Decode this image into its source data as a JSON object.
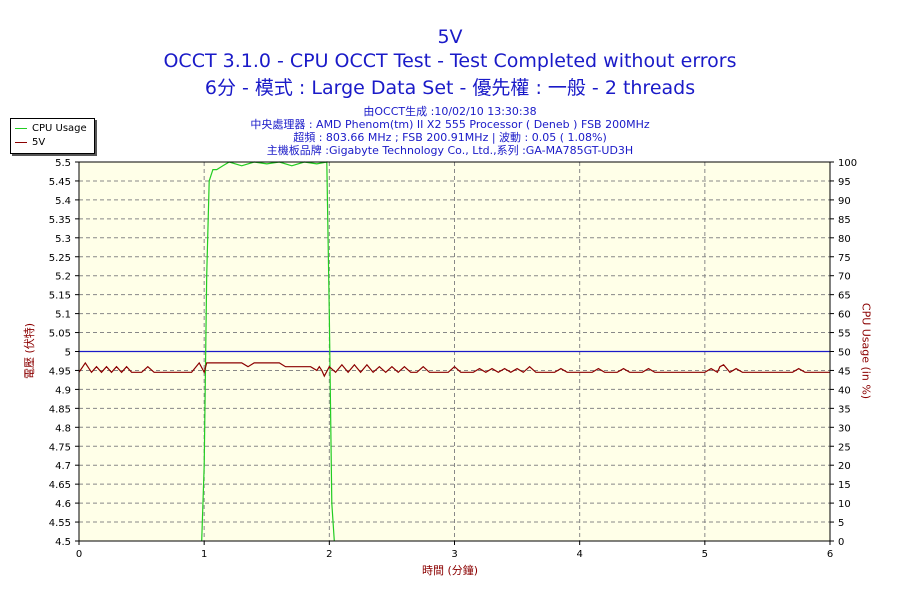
{
  "header": {
    "title": "5V",
    "line2": "OCCT 3.1.0 - CPU OCCT Test - Test Completed without errors",
    "line3": "6分 - 模式 : Large Data Set - 優先權 : 一般 - 2 threads",
    "info": [
      "由OCCT生成 :10/02/10 13:30:38",
      "中央處理器 : AMD Phenom(tm) II X2 555 Processor ( Deneb ) FSB 200MHz",
      "超頻 : 803.66 MHz ; FSB 200.91MHz | 波動 : 0.05 ( 1.08%)",
      "主機板品牌 :Gigabyte Technology Co., Ltd.,系列 :GA-MA785GT-UD3H"
    ]
  },
  "colors": {
    "plot_bg": "#ffffe8",
    "cpu_usage": "#22cc22",
    "voltage": "#8b0000",
    "reference": "#1a1ac8",
    "grid": "#888888",
    "axis_text": "#8b0000"
  },
  "chart_data": {
    "type": "line",
    "title": "5V",
    "xlabel": "時間 (分鐘)",
    "ylabel_left": "電壓 (伏特)",
    "ylabel_right": "CPU Usage (in %)",
    "xlim": [
      0,
      6
    ],
    "ylim_left": [
      4.5,
      5.5
    ],
    "ylim_right": [
      0,
      100
    ],
    "x_ticks": [
      "0",
      "1",
      "2",
      "3",
      "4",
      "5",
      "6"
    ],
    "y_left_ticks": [
      "4.5",
      "4.55",
      "4.6",
      "4.65",
      "4.7",
      "4.75",
      "4.8",
      "4.85",
      "4.9",
      "4.95",
      "5",
      "5.05",
      "5.1",
      "5.15",
      "5.2",
      "5.25",
      "5.3",
      "5.35",
      "5.4",
      "5.45",
      "5.5"
    ],
    "y_right_ticks": [
      "0",
      "5",
      "10",
      "15",
      "20",
      "25",
      "30",
      "35",
      "40",
      "45",
      "50",
      "55",
      "60",
      "65",
      "70",
      "75",
      "80",
      "85",
      "90",
      "95",
      "100"
    ],
    "grid": true,
    "legend_position": "top-left",
    "reference_line": {
      "axis": "left",
      "value": 5.0
    },
    "series": [
      {
        "name": "CPU Usage",
        "axis": "right",
        "points": [
          [
            0.98,
            0
          ],
          [
            1.0,
            20
          ],
          [
            1.02,
            70
          ],
          [
            1.04,
            95
          ],
          [
            1.07,
            98
          ],
          [
            1.1,
            98
          ],
          [
            1.15,
            99
          ],
          [
            1.2,
            100
          ],
          [
            1.3,
            99
          ],
          [
            1.4,
            100
          ],
          [
            1.5,
            99.5
          ],
          [
            1.6,
            100
          ],
          [
            1.7,
            99
          ],
          [
            1.8,
            100
          ],
          [
            1.9,
            99.5
          ],
          [
            1.98,
            100
          ],
          [
            2.0,
            60
          ],
          [
            2.02,
            10
          ],
          [
            2.04,
            0
          ]
        ]
      },
      {
        "name": "5V",
        "axis": "left",
        "points": [
          [
            0.0,
            4.945
          ],
          [
            0.05,
            4.97
          ],
          [
            0.1,
            4.945
          ],
          [
            0.14,
            4.96
          ],
          [
            0.18,
            4.945
          ],
          [
            0.22,
            4.96
          ],
          [
            0.26,
            4.945
          ],
          [
            0.3,
            4.96
          ],
          [
            0.34,
            4.945
          ],
          [
            0.38,
            4.96
          ],
          [
            0.42,
            4.945
          ],
          [
            0.5,
            4.945
          ],
          [
            0.55,
            4.96
          ],
          [
            0.6,
            4.945
          ],
          [
            0.9,
            4.945
          ],
          [
            0.96,
            4.97
          ],
          [
            1.0,
            4.945
          ],
          [
            1.02,
            4.97
          ],
          [
            1.05,
            4.97
          ],
          [
            1.3,
            4.97
          ],
          [
            1.35,
            4.96
          ],
          [
            1.4,
            4.97
          ],
          [
            1.6,
            4.97
          ],
          [
            1.65,
            4.96
          ],
          [
            1.7,
            4.96
          ],
          [
            1.85,
            4.96
          ],
          [
            1.9,
            4.95
          ],
          [
            1.92,
            4.96
          ],
          [
            1.94,
            4.95
          ],
          [
            1.96,
            4.935
          ],
          [
            2.0,
            4.96
          ],
          [
            2.05,
            4.945
          ],
          [
            2.1,
            4.965
          ],
          [
            2.15,
            4.945
          ],
          [
            2.2,
            4.965
          ],
          [
            2.25,
            4.945
          ],
          [
            2.3,
            4.965
          ],
          [
            2.35,
            4.945
          ],
          [
            2.4,
            4.96
          ],
          [
            2.45,
            4.945
          ],
          [
            2.5,
            4.96
          ],
          [
            2.55,
            4.945
          ],
          [
            2.6,
            4.96
          ],
          [
            2.65,
            4.945
          ],
          [
            2.7,
            4.945
          ],
          [
            2.75,
            4.96
          ],
          [
            2.8,
            4.945
          ],
          [
            2.95,
            4.945
          ],
          [
            3.0,
            4.96
          ],
          [
            3.05,
            4.945
          ],
          [
            3.15,
            4.945
          ],
          [
            3.2,
            4.955
          ],
          [
            3.25,
            4.945
          ],
          [
            3.3,
            4.955
          ],
          [
            3.35,
            4.945
          ],
          [
            3.4,
            4.955
          ],
          [
            3.45,
            4.945
          ],
          [
            3.5,
            4.955
          ],
          [
            3.55,
            4.945
          ],
          [
            3.6,
            4.96
          ],
          [
            3.65,
            4.945
          ],
          [
            3.8,
            4.945
          ],
          [
            3.85,
            4.955
          ],
          [
            3.9,
            4.945
          ],
          [
            4.1,
            4.945
          ],
          [
            4.15,
            4.955
          ],
          [
            4.2,
            4.945
          ],
          [
            4.3,
            4.945
          ],
          [
            4.35,
            4.955
          ],
          [
            4.4,
            4.945
          ],
          [
            4.5,
            4.945
          ],
          [
            4.55,
            4.955
          ],
          [
            4.6,
            4.945
          ],
          [
            5.0,
            4.945
          ],
          [
            5.05,
            4.955
          ],
          [
            5.1,
            4.945
          ],
          [
            5.1,
            4.945
          ],
          [
            5.12,
            4.96
          ],
          [
            5.15,
            4.965
          ],
          [
            5.2,
            4.945
          ],
          [
            5.25,
            4.955
          ],
          [
            5.3,
            4.945
          ],
          [
            5.7,
            4.945
          ],
          [
            5.75,
            4.955
          ],
          [
            5.8,
            4.945
          ],
          [
            6.0,
            4.945
          ]
        ]
      }
    ]
  }
}
